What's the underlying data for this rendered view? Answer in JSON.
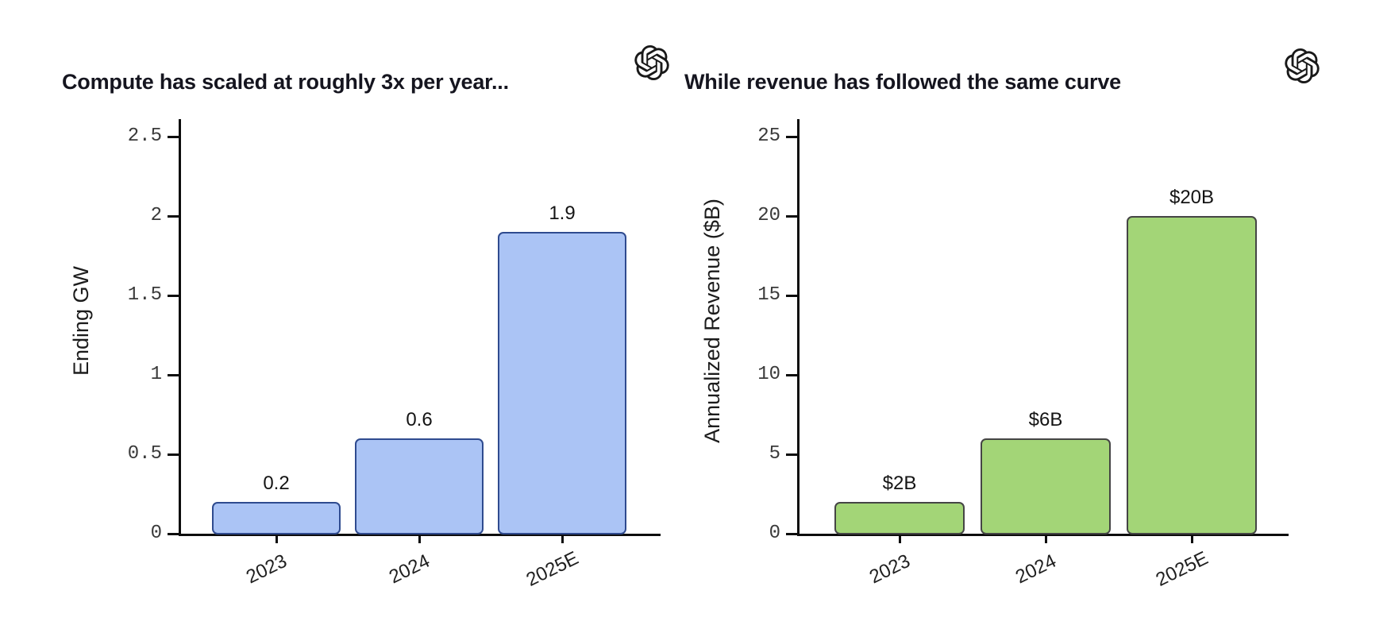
{
  "page": {
    "background_color": "#ffffff"
  },
  "chart_data": [
    {
      "type": "bar",
      "title": "Compute has scaled at roughly 3x per year...",
      "ylabel": "Ending GW",
      "xlabel": "",
      "categories": [
        "2023",
        "2024",
        "2025E"
      ],
      "values": [
        0.2,
        0.6,
        1.9
      ],
      "bar_labels": [
        "0.2",
        "0.6",
        "1.9"
      ],
      "ylim": [
        0,
        2.5
      ],
      "yticks": [
        0,
        0.5,
        1,
        1.5,
        2,
        2.5
      ],
      "ytick_labels": [
        "0",
        "0.5",
        "1",
        "1.5",
        "2",
        "2.5"
      ],
      "grid": false,
      "legend": null,
      "bar_fill_color": "#abc4f5",
      "bar_edge_color": "#2f4b8f",
      "watermark_icon": "openai-logo"
    },
    {
      "type": "bar",
      "title": "While revenue has followed the same curve",
      "ylabel": "Annualized Revenue ($B)",
      "xlabel": "",
      "categories": [
        "2023",
        "2024",
        "2025E"
      ],
      "values": [
        2,
        6,
        20
      ],
      "bar_labels": [
        "$2B",
        "$6B",
        "$20B"
      ],
      "ylim": [
        0,
        25
      ],
      "yticks": [
        0,
        5,
        10,
        15,
        20,
        25
      ],
      "ytick_labels": [
        "0",
        "5",
        "10",
        "15",
        "20",
        "25"
      ],
      "grid": false,
      "legend": null,
      "bar_fill_color": "#a3d577",
      "bar_edge_color": "#454545",
      "watermark_icon": "openai-logo"
    }
  ]
}
